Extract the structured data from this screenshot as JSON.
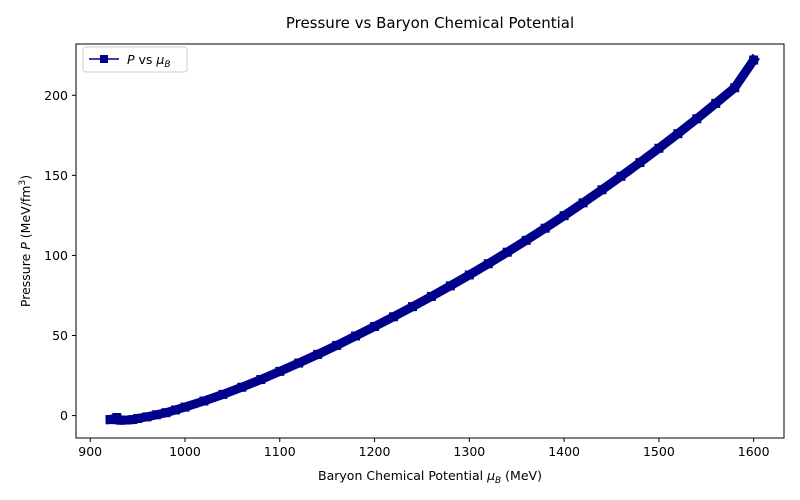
{
  "chart_data": {
    "type": "line",
    "title": "Pressure vs Baryon Chemical Potential",
    "xlabel": {
      "prefix": "Baryon Chemical Potential ",
      "symbol": "μ",
      "sub": "B",
      "suffix": " (MeV)"
    },
    "ylabel": {
      "prefix": "Pressure ",
      "symbol": "P",
      "unit": " (MeV/fm",
      "sup": "3",
      "close": ")"
    },
    "xlim": [
      885,
      1632
    ],
    "ylim": [
      -14,
      232
    ],
    "xticks": [
      900,
      1000,
      1100,
      1200,
      1300,
      1400,
      1500,
      1600
    ],
    "yticks": [
      0,
      50,
      100,
      150,
      200
    ],
    "grid": false,
    "legend": {
      "placement": "top-left",
      "label": {
        "symbol": "P",
        "mid": " vs ",
        "mu": "μ",
        "sub": "B"
      }
    },
    "series": [
      {
        "name": "P vs μB",
        "color": "#00008b",
        "marker": "square",
        "points": [
          [
            921,
            -2.5
          ],
          [
            924,
            -2.4
          ],
          [
            926,
            -2.2
          ],
          [
            928,
            -1.2
          ],
          [
            929,
            -2.6
          ],
          [
            932,
            -2.9
          ],
          [
            938,
            -2.8
          ],
          [
            945,
            -2.5
          ],
          [
            950,
            -1.8
          ],
          [
            960,
            -0.8
          ],
          [
            970,
            0.5
          ],
          [
            980,
            1.8
          ],
          [
            990,
            3.5
          ],
          [
            1000,
            5.3
          ],
          [
            1020,
            9.1
          ],
          [
            1040,
            13.2
          ],
          [
            1060,
            17.7
          ],
          [
            1080,
            22.5
          ],
          [
            1100,
            27.6
          ],
          [
            1120,
            32.8
          ],
          [
            1140,
            38.2
          ],
          [
            1160,
            43.8
          ],
          [
            1180,
            49.7
          ],
          [
            1200,
            55.6
          ],
          [
            1220,
            61.7
          ],
          [
            1240,
            68.0
          ],
          [
            1260,
            74.4
          ],
          [
            1280,
            81.0
          ],
          [
            1300,
            87.8
          ],
          [
            1320,
            94.8
          ],
          [
            1340,
            102.0
          ],
          [
            1360,
            109.4
          ],
          [
            1380,
            117.0
          ],
          [
            1400,
            124.8
          ],
          [
            1420,
            132.8
          ],
          [
            1440,
            141.0
          ],
          [
            1460,
            149.4
          ],
          [
            1480,
            158.0
          ],
          [
            1500,
            166.9
          ],
          [
            1520,
            176.0
          ],
          [
            1540,
            185.3
          ],
          [
            1560,
            194.9
          ],
          [
            1580,
            204.7
          ],
          [
            1600,
            222.0
          ]
        ]
      }
    ]
  }
}
